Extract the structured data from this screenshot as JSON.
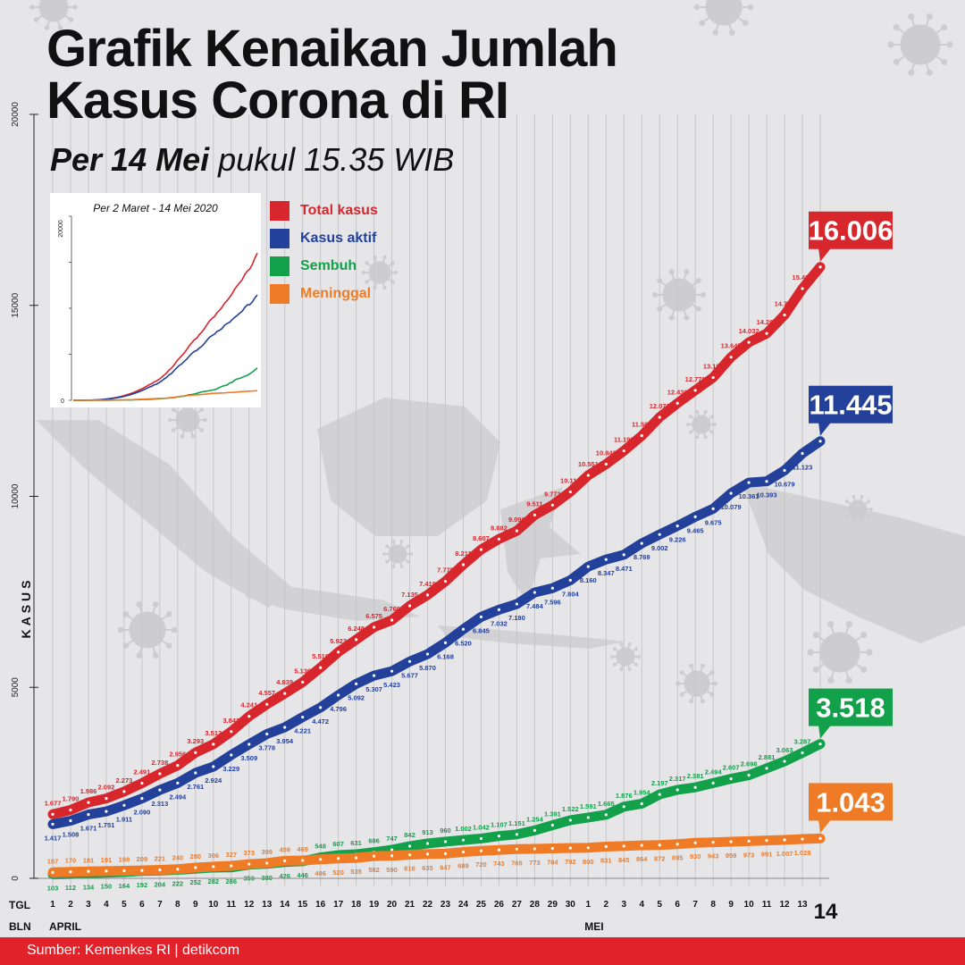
{
  "header": {
    "title_line1": "Grafik Kenaikan Jumlah",
    "title_line2": "Kasus Corona di RI",
    "subtitle_bold": "Per 14 Mei",
    "subtitle_rest": " pukul 15.35 WIB"
  },
  "inset": {
    "title": "Per 2 Maret - 14 Mei 2020",
    "y_ticks": [
      "20000",
      "0"
    ]
  },
  "footer": {
    "source": "Sumber: Kemenkes RI | detikcom"
  },
  "chart_data": {
    "type": "line",
    "ylabel": "KASUS",
    "ylim": [
      0,
      20000
    ],
    "y_ticks": [
      "20000",
      "15000",
      "10000",
      "5000",
      "0"
    ],
    "row_labels": {
      "tgl": "TGL",
      "bln": "BLN"
    },
    "months": [
      {
        "label": "APRIL",
        "index": 0
      },
      {
        "label": "MEI",
        "index": 30
      }
    ],
    "x": [
      "1",
      "2",
      "3",
      "4",
      "5",
      "6",
      "7",
      "8",
      "9",
      "10",
      "11",
      "12",
      "13",
      "14",
      "15",
      "16",
      "17",
      "18",
      "19",
      "20",
      "21",
      "22",
      "23",
      "24",
      "25",
      "26",
      "27",
      "28",
      "29",
      "30",
      "1",
      "2",
      "3",
      "4",
      "5",
      "6",
      "7",
      "8",
      "9",
      "10",
      "11",
      "12",
      "13",
      "14"
    ],
    "legend": [
      {
        "label": "Total kasus",
        "color": "#d7262c"
      },
      {
        "label": "Kasus aktif",
        "color": "#23409a"
      },
      {
        "label": "Sembuh",
        "color": "#12a04a"
      },
      {
        "label": "Meninggal",
        "color": "#f07b26"
      }
    ],
    "series": [
      {
        "name": "Total kasus",
        "color": "#d7262c",
        "final_label": "16.006",
        "labels_above": true,
        "values": [
          1677,
          1790,
          1986,
          2092,
          2273,
          2491,
          2738,
          2956,
          3293,
          3512,
          3842,
          4241,
          4557,
          4839,
          5136,
          5516,
          5923,
          6248,
          6575,
          6760,
          7135,
          7418,
          7775,
          8211,
          8607,
          8882,
          9096,
          9511,
          9771,
          10118,
          10551,
          10843,
          11192,
          11587,
          12071,
          12438,
          12776,
          13112,
          13645,
          14032,
          14265,
          14749,
          15438,
          16006
        ],
        "labels": [
          "1.677",
          "1.790",
          "1.986",
          "2.092",
          "2.273",
          "2.491",
          "2.738",
          "2.956",
          "3.293",
          "3.512",
          "3.842",
          "4.241",
          "4.557",
          "4.839",
          "5.136",
          "5.516",
          "5.923",
          "6.248",
          "6.575",
          "6.760",
          "7.135",
          "7.418",
          "7.775",
          "8.211",
          "8.607",
          "8.882",
          "9.096",
          "9.511",
          "9.771",
          "10.118",
          "10.551",
          "10.843",
          "11.192",
          "11.587",
          "12.071",
          "12.438",
          "12.776",
          "13.112",
          "13.645",
          "14.032",
          "14.265",
          "14.749",
          "15.438",
          ""
        ]
      },
      {
        "name": "Kasus aktif",
        "color": "#23409a",
        "final_label": "11.445",
        "labels_above": false,
        "values": [
          1417,
          1508,
          1671,
          1751,
          1911,
          2090,
          2313,
          2494,
          2761,
          2924,
          3229,
          3509,
          3778,
          3954,
          4221,
          4472,
          4796,
          5092,
          5307,
          5423,
          5677,
          5870,
          6168,
          6520,
          6845,
          7032,
          7180,
          7484,
          7596,
          7804,
          8160,
          8347,
          8471,
          8769,
          9002,
          9226,
          9465,
          9675,
          10079,
          10361,
          10393,
          10679,
          11123,
          11445
        ],
        "labels": [
          "1.417",
          "1.508",
          "1.671",
          "1.751",
          "1.911",
          "2.090",
          "2.313",
          "2.494",
          "2.761",
          "2.924",
          "3.229",
          "3.509",
          "3.778",
          "3.954",
          "4.221",
          "4.472",
          "4.796",
          "5.092",
          "5.307",
          "5.423",
          "5.677",
          "5.870",
          "6.168",
          "6.520",
          "6.845",
          "7.032",
          "7.180",
          "7.484",
          "7.596",
          "7.804",
          "8.160",
          "8.347",
          "8.471",
          "8.769",
          "9.002",
          "9.226",
          "9.465",
          "9.675",
          "10.079",
          "10.361",
          "10.393",
          "10.679",
          "11.123",
          ""
        ]
      },
      {
        "name": "Sembuh",
        "color": "#12a04a",
        "final_label": "3.518",
        "labels_above": true,
        "values": [
          103,
          112,
          134,
          150,
          164,
          192,
          204,
          222,
          252,
          282,
          286,
          359,
          380,
          426,
          446,
          548,
          607,
          631,
          686,
          747,
          842,
          913,
          960,
          1002,
          1042,
          1107,
          1151,
          1254,
          1391,
          1522,
          1591,
          1665,
          1876,
          1954,
          2197,
          2317,
          2381,
          2494,
          2607,
          2698,
          2881,
          3063,
          3287,
          3518
        ],
        "labels": [
          "",
          "",
          "",
          "",
          "",
          "",
          "",
          "",
          "",
          "",
          "",
          "",
          "",
          "",
          "",
          "548",
          "607",
          "631",
          "686",
          "747",
          "842",
          "913",
          "960",
          "1.002",
          "1.042",
          "1.107",
          "1.151",
          "1.254",
          "1.391",
          "1.522",
          "1.591",
          "1.665",
          "1.876",
          "1.954",
          "2.197",
          "2.317",
          "2.381",
          "2.494",
          "2.607",
          "2.698",
          "2.881",
          "3.063",
          "3.287",
          ""
        ],
        "labels_below": [
          "103",
          "112",
          "134",
          "150",
          "164",
          "192",
          "204",
          "222",
          "252",
          "282",
          "286",
          "359",
          "380",
          "426",
          "446",
          "",
          "",
          "",
          "",
          "",
          "",
          "",
          "",
          "",
          "",
          "",
          "",
          "",
          "",
          "",
          "",
          "",
          "",
          "",
          "",
          "",
          "",
          "",
          "",
          "",
          "",
          "",
          "",
          ""
        ]
      },
      {
        "name": "Meninggal",
        "color": "#f07b26",
        "final_label": "1.043",
        "labels_above": true,
        "values": [
          157,
          170,
          181,
          191,
          198,
          209,
          221,
          240,
          280,
          306,
          327,
          373,
          399,
          459,
          469,
          496,
          520,
          535,
          582,
          590,
          616,
          635,
          647,
          689,
          720,
          743,
          765,
          773,
          784,
          792,
          800,
          831,
          845,
          864,
          872,
          895,
          930,
          943,
          959,
          973,
          991,
          1007,
          1028,
          1043
        ],
        "labels": [
          "157",
          "170",
          "181",
          "191",
          "198",
          "209",
          "221",
          "240",
          "280",
          "306",
          "327",
          "373",
          "399",
          "459",
          "469",
          "",
          "",
          "",
          "",
          "",
          "",
          "",
          "",
          "",
          "",
          "",
          "",
          "",
          "",
          "",
          "",
          "",
          "",
          "",
          "",
          "",
          "",
          "",
          "",
          "",
          "",
          "",
          "",
          ""
        ],
        "labels_below": [
          "",
          "",
          "",
          "",
          "",
          "",
          "",
          "",
          "",
          "",
          "",
          "",
          "",
          "",
          "",
          "496",
          "520",
          "535",
          "582",
          "590",
          "616",
          "635",
          "647",
          "689",
          "720",
          "743",
          "765",
          "773",
          "784",
          "792",
          "800",
          "831",
          "845",
          "864",
          "872",
          "895",
          "930",
          "943",
          "959",
          "973",
          "991",
          "1.007",
          "1.028",
          ""
        ]
      }
    ]
  }
}
